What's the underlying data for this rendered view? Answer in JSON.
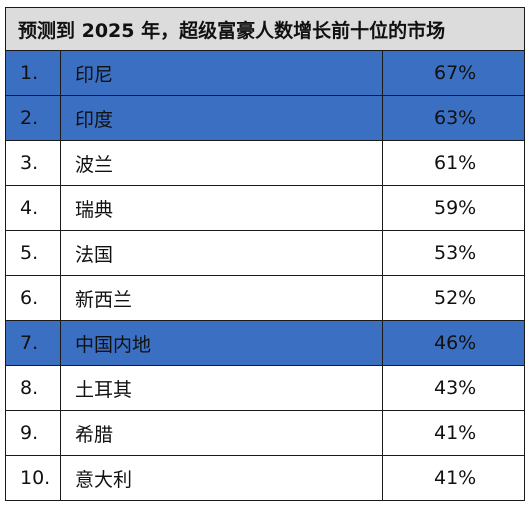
{
  "table": {
    "title": "预测到 2025 年，超级富豪人数增长前十位的市场",
    "highlight_color": "#3a6fc2",
    "rows": [
      {
        "rank": "1.",
        "market": "印尼",
        "growth": "67%",
        "highlighted": true
      },
      {
        "rank": "2.",
        "market": "印度",
        "growth": "63%",
        "highlighted": true
      },
      {
        "rank": "3.",
        "market": "波兰",
        "growth": "61%",
        "highlighted": false
      },
      {
        "rank": "4.",
        "market": "瑞典",
        "growth": "59%",
        "highlighted": false
      },
      {
        "rank": "5.",
        "market": "法国",
        "growth": "53%",
        "highlighted": false
      },
      {
        "rank": "6.",
        "market": "新西兰",
        "growth": "52%",
        "highlighted": false
      },
      {
        "rank": "7.",
        "market": "中国内地",
        "growth": "46%",
        "highlighted": true
      },
      {
        "rank": "8.",
        "market": "土耳其",
        "growth": "43%",
        "highlighted": false
      },
      {
        "rank": "9.",
        "market": "希腊",
        "growth": "41%",
        "highlighted": false
      },
      {
        "rank": "10.",
        "market": "意大利",
        "growth": "41%",
        "highlighted": false
      }
    ]
  }
}
